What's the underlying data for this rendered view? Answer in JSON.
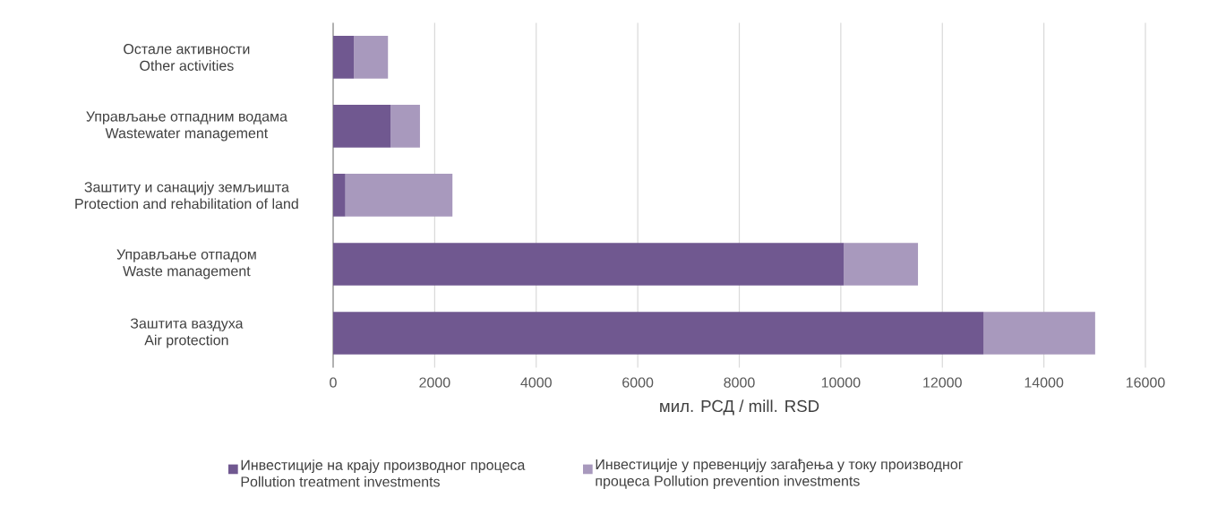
{
  "chart_data": {
    "type": "bar",
    "orientation": "horizontal",
    "stacked": true,
    "categories": [
      "Остале активности Other activities",
      "Управљање отпадним водама Wastewater management",
      "Заштиту и санацију земљишта Protection and rehabilitation of land",
      "Управљање отпадом Waste management",
      "Заштита ваздуха Air protection"
    ],
    "series": [
      {
        "name": "Инвестиције на крају производног процеса Pollution treatment investments",
        "color": "#705890",
        "values": [
          410,
          1130,
          240,
          10060,
          12820
        ]
      },
      {
        "name": "Инвестиције у превенцију загађења у току производног процеса Pollution prevention investments",
        "color": "#a899bd",
        "values": [
          670,
          580,
          2110,
          1460,
          2190
        ]
      }
    ],
    "xlabel": "мил. РСД / mill. RSD",
    "xlim": [
      0,
      16000
    ],
    "xticks": [
      0,
      2000,
      4000,
      6000,
      8000,
      10000,
      12000,
      14000,
      16000
    ],
    "grid": "x",
    "legend": "bottom"
  }
}
